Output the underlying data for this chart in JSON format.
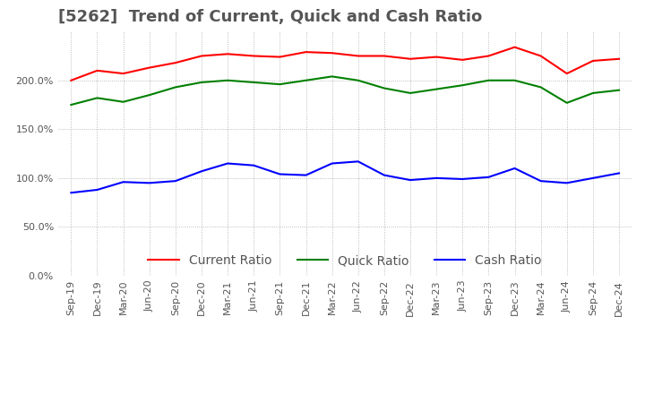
{
  "title": "[5262]  Trend of Current, Quick and Cash Ratio",
  "x_labels": [
    "Sep-19",
    "Dec-19",
    "Mar-20",
    "Jun-20",
    "Sep-20",
    "Dec-20",
    "Mar-21",
    "Jun-21",
    "Sep-21",
    "Dec-21",
    "Mar-22",
    "Jun-22",
    "Sep-22",
    "Dec-22",
    "Mar-23",
    "Jun-23",
    "Sep-23",
    "Dec-23",
    "Mar-24",
    "Jun-24",
    "Sep-24",
    "Dec-24"
  ],
  "current_ratio": [
    200.0,
    210.0,
    207.0,
    213.0,
    218.0,
    225.0,
    227.0,
    225.0,
    224.0,
    229.0,
    228.0,
    225.0,
    225.0,
    222.0,
    224.0,
    221.0,
    225.0,
    234.0,
    225.0,
    207.0,
    220.0,
    222.0
  ],
  "quick_ratio": [
    175.0,
    182.0,
    178.0,
    185.0,
    193.0,
    198.0,
    200.0,
    198.0,
    196.0,
    200.0,
    204.0,
    200.0,
    192.0,
    187.0,
    191.0,
    195.0,
    200.0,
    200.0,
    193.0,
    177.0,
    187.0,
    190.0
  ],
  "cash_ratio": [
    85.0,
    88.0,
    96.0,
    95.0,
    97.0,
    107.0,
    115.0,
    113.0,
    104.0,
    103.0,
    115.0,
    117.0,
    103.0,
    98.0,
    100.0,
    99.0,
    101.0,
    110.0,
    97.0,
    95.0,
    100.0,
    105.0
  ],
  "current_color": "#ff0000",
  "quick_color": "#008000",
  "cash_color": "#0000ff",
  "background_color": "#ffffff",
  "grid_color": "#aaaaaa",
  "ylim": [
    0,
    250
  ],
  "yticks": [
    0,
    50,
    100,
    150,
    200
  ],
  "title_fontsize": 13,
  "legend_fontsize": 10,
  "tick_fontsize": 8
}
